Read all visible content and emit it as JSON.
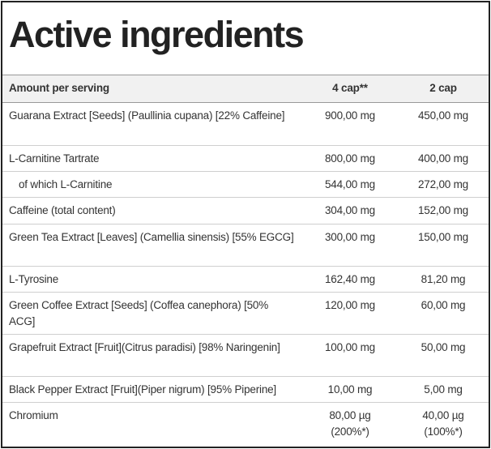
{
  "title": "Active ingredients",
  "table": {
    "header": [
      "Amount per serving",
      "4 cap**",
      "2 cap"
    ],
    "rows": [
      [
        "Guarana Extract [Seeds] (Paullinia cupana) [22% Caffeine]",
        "900,00 mg",
        "450,00 mg"
      ],
      [
        "L-Carnitine Tartrate",
        "800,00 mg",
        "400,00 mg"
      ],
      [
        "of which L-Carnitine",
        "544,00 mg",
        "272,00 mg"
      ],
      [
        "Caffeine (total content)",
        "304,00 mg",
        "152,00 mg"
      ],
      [
        "Green Tea Extract [Leaves] (Camellia sinensis) [55% EGCG]",
        "300,00 mg",
        "150,00 mg"
      ],
      [
        "L-Tyrosine",
        "162,40 mg",
        "81,20 mg"
      ],
      [
        "Green Coffee Extract [Seeds] (Coffea canephora) [50% ACG]",
        "120,00 mg",
        "60,00 mg"
      ],
      [
        "Grapefruit Extract [Fruit](Citrus paradisi) [98% Naringenin]",
        "100,00 mg",
        "50,00 mg"
      ],
      [
        "Black Pepper Extract [Fruit](Piper nigrum) [95% Piperine]",
        "10,00 mg",
        "5,00 mg"
      ],
      [
        "Chromium",
        "80,00 µg (200%*)",
        "40,00 µg (100%*)"
      ]
    ]
  }
}
